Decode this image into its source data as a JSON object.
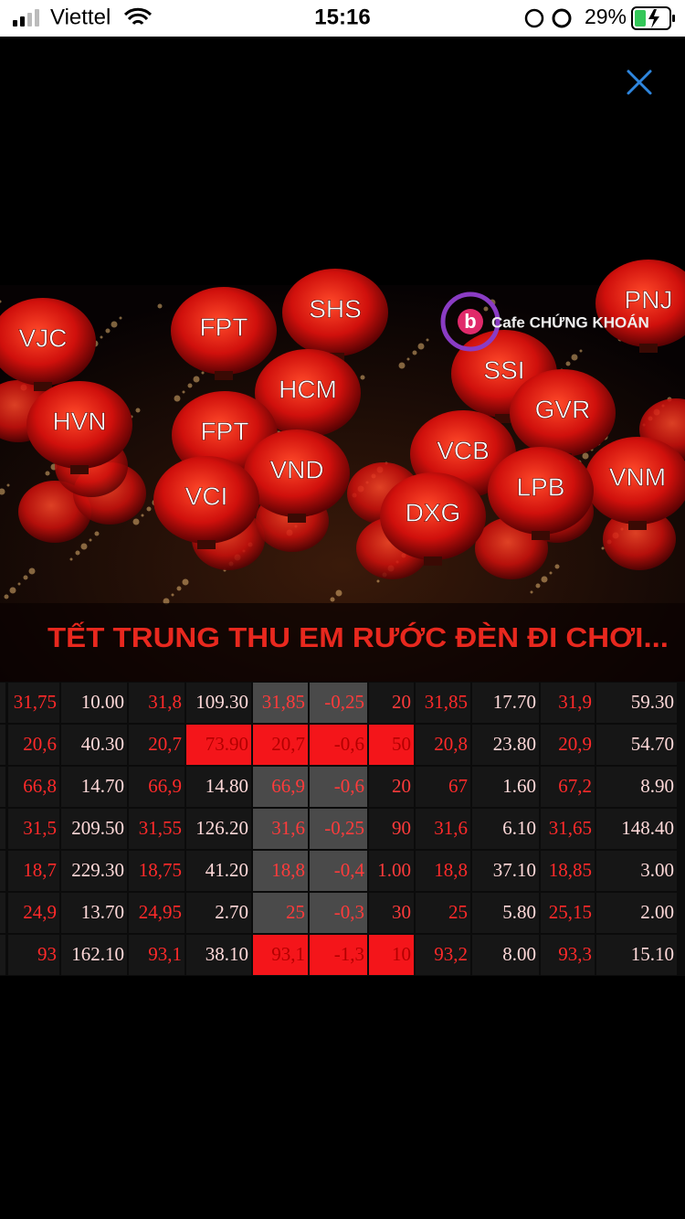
{
  "status_bar": {
    "carrier": "Viettel",
    "time": "15:16",
    "battery": "29%"
  },
  "image": {
    "lanterns": [
      "VJC",
      "FPT",
      "SHS",
      "PNJ",
      "HVN",
      "HCM",
      "SSI",
      "GVR",
      "FPT",
      "VND",
      "VCB",
      "VNM",
      "VCI",
      "DXG",
      "LPB"
    ],
    "logo_mark": "b",
    "logo": "Cafe CHỨNG KHOÁN",
    "caption": "TẾT TRUNG THU EM RƯỚC ĐÈN ĐI CHƠI..."
  },
  "table": {
    "rows": [
      [
        "31,75",
        "10.00",
        "31,8",
        "109.30",
        "31,85",
        "-0,25",
        "20",
        "31,85",
        "17.70",
        "31,9",
        "59.30"
      ],
      [
        "20,6",
        "40.30",
        "20,7",
        "73.90",
        "20,7",
        "-0,6",
        "50",
        "20,8",
        "23.80",
        "20,9",
        "54.70"
      ],
      [
        "66,8",
        "14.70",
        "66,9",
        "14.80",
        "66,9",
        "-0,6",
        "20",
        "67",
        "1.60",
        "67,2",
        "8.90"
      ],
      [
        "31,5",
        "209.50",
        "31,55",
        "126.20",
        "31,6",
        "-0,25",
        "90",
        "31,6",
        "6.10",
        "31,65",
        "148.40"
      ],
      [
        "18,7",
        "229.30",
        "18,75",
        "41.20",
        "18,8",
        "-0,4",
        "1.00",
        "18,8",
        "37.10",
        "18,85",
        "3.00"
      ],
      [
        "24,9",
        "13.70",
        "24,95",
        "2.70",
        "25",
        "-0,3",
        "30",
        "25",
        "5.80",
        "25,15",
        "2.00"
      ],
      [
        "93",
        "162.10",
        "93,1",
        "38.10",
        "93,1",
        "-1,3",
        "10",
        "93,2",
        "8.00",
        "93,3",
        "15.10"
      ]
    ]
  }
}
